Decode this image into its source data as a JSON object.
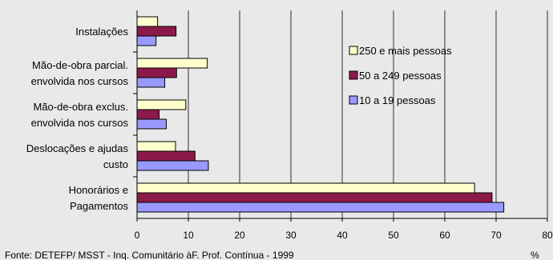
{
  "chart_data": {
    "type": "bar",
    "orientation": "horizontal",
    "categories": [
      [
        "Instalações"
      ],
      [
        "Mão-de-obra parcial.",
        "envolvida nos cursos"
      ],
      [
        "Mão-de-obra exclus.",
        "envolvida nos cursos"
      ],
      [
        "Deslocações e ajudas",
        "custo"
      ],
      [
        "Honorários e",
        "Pagamentos"
      ]
    ],
    "series": [
      {
        "name": "250 e mais pessoas",
        "color": "#ffffcc",
        "values": [
          4.0,
          13.7,
          9.5,
          7.5,
          65.8
        ]
      },
      {
        "name": "50 a 249 pessoas",
        "color": "#8b1a4a",
        "values": [
          7.6,
          7.7,
          4.3,
          11.3,
          69.2
        ]
      },
      {
        "name": "10 a 19 pessoas",
        "color": "#9999ff",
        "values": [
          3.7,
          5.4,
          5.7,
          13.9,
          71.5
        ]
      }
    ],
    "x_ticks": [
      0,
      10,
      20,
      30,
      40,
      50,
      60,
      70,
      80
    ],
    "xlim": [
      0,
      80
    ],
    "xlabel": "%",
    "grid": "vertical",
    "legend_position": "top-right"
  },
  "source_note": "Fonte:  DETEFP/ MSST - Inq. Comunitário àF. Prof. Contínua - 1999"
}
